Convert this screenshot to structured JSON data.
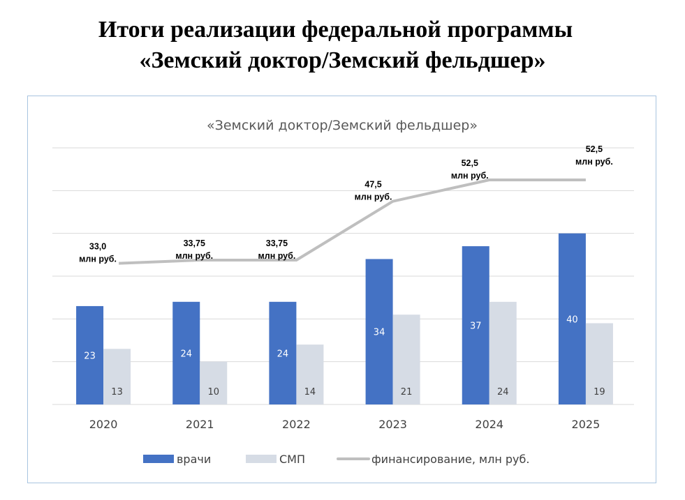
{
  "page": {
    "heading_line1": "Итоги реализации федеральной программы",
    "heading_line2": "«Земский доктор/Земский фельдшер»"
  },
  "chart_data": {
    "type": "bar+line",
    "title": "«Земский доктор/Земский фельдшер»",
    "categories": [
      "2020",
      "2021",
      "2022",
      "2023",
      "2024",
      "2025"
    ],
    "ylim": [
      0,
      60
    ],
    "grid": true,
    "legend_placement": "bottom",
    "series": [
      {
        "name": "врачи",
        "type": "bar",
        "color": "#4472c4",
        "values": [
          23,
          24,
          24,
          34,
          37,
          40
        ],
        "labels": [
          "23",
          "24",
          "24",
          "34",
          "37",
          "40"
        ]
      },
      {
        "name": "СМП",
        "type": "bar",
        "color": "#d6dce5",
        "values": [
          13,
          10,
          14,
          21,
          24,
          19
        ],
        "labels": [
          "13",
          "10",
          "14",
          "21",
          "24",
          "19"
        ]
      },
      {
        "name": "финансирование, млн руб.",
        "type": "line",
        "color": "#bfbfbf",
        "values": [
          33.0,
          33.75,
          33.75,
          47.5,
          52.5,
          52.5
        ],
        "labels": [
          "33,0",
          "33,75",
          "33,75",
          "47,5",
          "52,5",
          "52,5"
        ],
        "unit_label": "млн руб."
      }
    ]
  }
}
